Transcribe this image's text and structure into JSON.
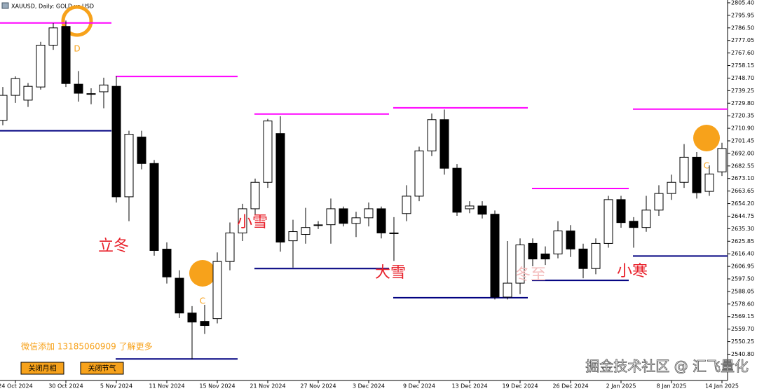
{
  "chart_data": {
    "type": "candlestick",
    "title": "XAUUSD, Daily:  GOLD vs USD",
    "categories": [
      null,
      "24 Oct 2024",
      null,
      null,
      null,
      "30 Oct 2024",
      null,
      null,
      null,
      "5 Nov 2024",
      null,
      null,
      null,
      "11 Nov 2024",
      null,
      null,
      null,
      "15 Nov 2024",
      null,
      null,
      null,
      "21 Nov 2024",
      null,
      null,
      null,
      "27 Nov 2024",
      null,
      null,
      null,
      "3 Dec 2024",
      null,
      null,
      null,
      "9 Dec 2024",
      null,
      null,
      null,
      "13 Dec 2024",
      null,
      null,
      null,
      "19 Dec 2024",
      null,
      null,
      null,
      "26 Dec 2024",
      null,
      null,
      null,
      "2 Jan 2025",
      null,
      null,
      null,
      "8 Jan 2025",
      null,
      null,
      null,
      "14 Jan 2025"
    ],
    "open": [
      2716.9,
      2735.7,
      2732.1,
      2742.0,
      2773.5,
      2787.6,
      2744.1,
      2737.0,
      2738.4,
      2742.5,
      2659.3,
      2704.3,
      2684.4,
      2619.9,
      2598.0,
      2571.8,
      2565.5,
      2567.6,
      2610.6,
      2632.1,
      2650.3,
      2670.2,
      2706.9,
      2626.2,
      2631.0,
      2637.7,
      2638.3,
      2650.3,
      2639.3,
      2643.5,
      2650.3,
      2632.1,
      2646.7,
      2659.8,
      2693.9,
      2717.4,
      2680.8,
      2650.3,
      2652.4,
      2646.2,
      2583.8,
      2594.3,
      2624.2,
      2616.3,
      2616.3,
      2633.6,
      2620.0,
      2605.3,
      2624.2,
      2657.2,
      2640.9,
      2636.2,
      2649.3,
      2661.8,
      2670.2,
      2689.1,
      2663.4,
      2678.1
    ],
    "high": [
      2742.0,
      2750.0,
      2745.0,
      2776.0,
      2790.0,
      2792.0,
      2754.0,
      2741.0,
      2749.0,
      2750.0,
      2709.0,
      2709.0,
      2687.0,
      2625.0,
      2604.0,
      2577.0,
      2578.0,
      2617.4,
      2640.0,
      2654.0,
      2673.0,
      2718.0,
      2720.0,
      2642.0,
      2651.0,
      2641.0,
      2658.0,
      2652.0,
      2648.0,
      2655.0,
      2652.0,
      2644.0,
      2668.0,
      2697.0,
      2722.0,
      2725.0,
      2684.0,
      2656.0,
      2656.0,
      2649.0,
      2626.0,
      2628.0,
      2628.0,
      2622.0,
      2641.0,
      2638.0,
      2624.0,
      2628.0,
      2660.0,
      2660.0,
      2644.0,
      2660.0,
      2668.0,
      2676.0,
      2699.0,
      2693.0,
      2683.0,
      2700.0
    ],
    "low": [
      2713.2,
      2730.0,
      2727.0,
      2740.0,
      2770.0,
      2742.0,
      2731.0,
      2729.0,
      2726.0,
      2655.0,
      2641.0,
      2680.0,
      2615.0,
      2594.0,
      2568.0,
      2537.0,
      2556.0,
      2564.0,
      2604.0,
      2626.0,
      2646.0,
      2666.0,
      2618.0,
      2606.0,
      2624.0,
      2635.0,
      2624.0,
      2637.0,
      2629.0,
      2637.0,
      2628.0,
      2611.0,
      2641.0,
      2656.0,
      2690.0,
      2676.0,
      2645.0,
      2647.0,
      2643.0,
      2582.0,
      2582.0,
      2586.0,
      2607.0,
      2608.0,
      2613.0,
      2614.0,
      2598.0,
      2601.0,
      2621.0,
      2636.0,
      2621.0,
      2633.0,
      2645.0,
      2657.0,
      2666.0,
      2658.0,
      2660.0,
      2675.0
    ],
    "close": [
      2735.7,
      2748.3,
      2742.5,
      2773.5,
      2786.5,
      2744.6,
      2737.3,
      2736.8,
      2743.5,
      2659.3,
      2706.4,
      2684.4,
      2618.9,
      2599.0,
      2571.8,
      2565.0,
      2562.4,
      2610.6,
      2632.1,
      2650.3,
      2670.2,
      2716.4,
      2625.2,
      2633.1,
      2636.2,
      2638.2,
      2650.3,
      2639.3,
      2643.5,
      2650.3,
      2632.1,
      2632.1,
      2659.8,
      2693.9,
      2717.4,
      2680.8,
      2647.7,
      2652.4,
      2646.2,
      2583.8,
      2594.3,
      2623.1,
      2612.5,
      2612.5,
      2633.6,
      2620.0,
      2605.3,
      2624.2,
      2657.2,
      2639.9,
      2636.2,
      2649.3,
      2661.8,
      2670.2,
      2689.1,
      2662.4,
      2676.5,
      2695.7
    ],
    "up_color": "#ffffff",
    "down_color": "#000000",
    "resistance": {
      "color": "#ff00ff",
      "values": [
        2790.2,
        2749.9,
        2721.6,
        2726.3,
        2665.6,
        2725.3
      ]
    },
    "support": {
      "color": "#000080",
      "values": [
        2709.0,
        2537.2,
        2605.3,
        2583.3,
        2596.4,
        2614.7
      ]
    },
    "annotations": [
      "D",
      "C",
      "C"
    ],
    "solar_terms": [
      "立冬",
      "小雪",
      "大雪",
      "冬至",
      "小寒"
    ],
    "ylim": [
      2521.0,
      2807.5
    ],
    "yticks": [
      {
        "value": 2805.4,
        "label": "2805.40"
      },
      2795.95,
      {
        "value": 2786.5,
        "label": "2786.50"
      },
      2777.05,
      {
        "value": 2767.6,
        "label": "2767.60"
      },
      2758.15,
      {
        "value": 2748.7,
        "label": "2748.70"
      },
      2739.25,
      {
        "value": 2729.8,
        "label": "2729.80"
      },
      2720.35,
      {
        "value": 2710.9,
        "label": "2710.90"
      },
      2701.45,
      {
        "value": 2692,
        "label": "2692.00"
      },
      2682.55,
      {
        "value": 2673.1,
        "label": "2673.10"
      },
      2663.65,
      {
        "value": 2654.2,
        "label": "2654.20"
      },
      2644.75,
      {
        "value": 2635.3,
        "label": "2635.30"
      },
      2625.85,
      {
        "value": 2616.4,
        "label": "2616.40"
      },
      2606.95,
      {
        "value": 2597.5,
        "label": "2597.50"
      },
      2588.05,
      {
        "value": 2578.6,
        "label": "2578.60"
      },
      2569.15,
      {
        "value": 2559.7,
        "label": "2559.70"
      },
      2550.25,
      {
        "value": 2540.8,
        "label": "2540.80"
      }
    ],
    "buttons": [
      "关闭月相",
      "关闭节气"
    ],
    "contact": "微信添加 13185060909 了解更多",
    "watermark": "掘金技术社区 @ 汇飞量化"
  }
}
